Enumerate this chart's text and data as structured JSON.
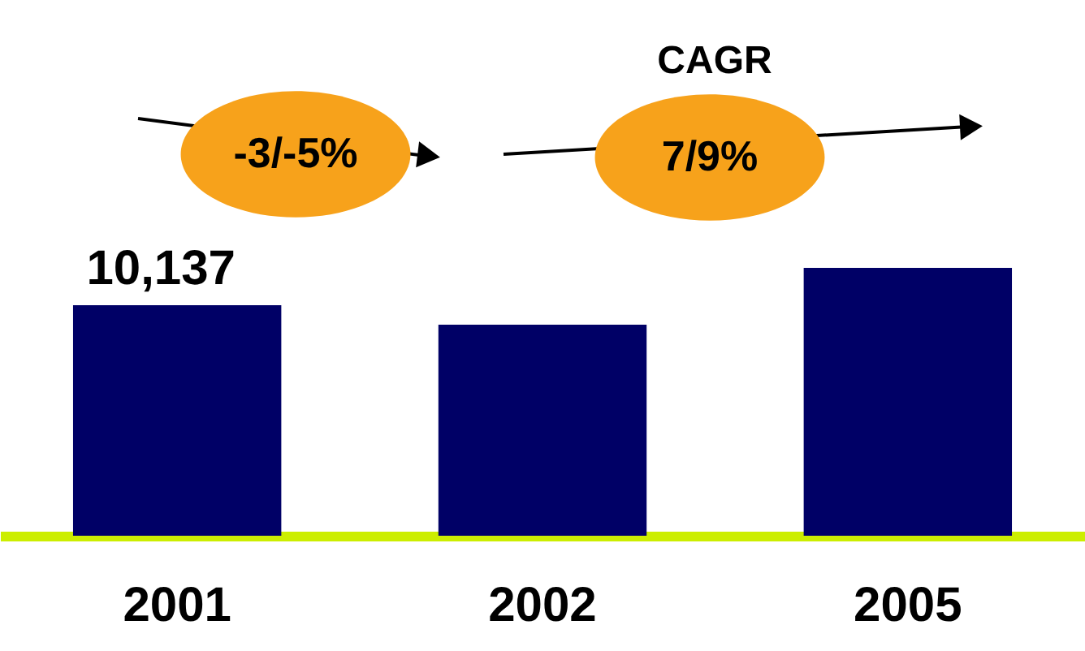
{
  "chart_data": {
    "type": "bar",
    "categories": [
      "2001",
      "2002",
      null,
      "2005"
    ],
    "values": [
      10137,
      9280,
      null,
      11780
    ],
    "color": "#000066",
    "value_labels": [
      "10,137",
      null,
      null,
      null
    ],
    "annotations": [
      "CAGR",
      "-3/-5%",
      "7/9%"
    ]
  }
}
